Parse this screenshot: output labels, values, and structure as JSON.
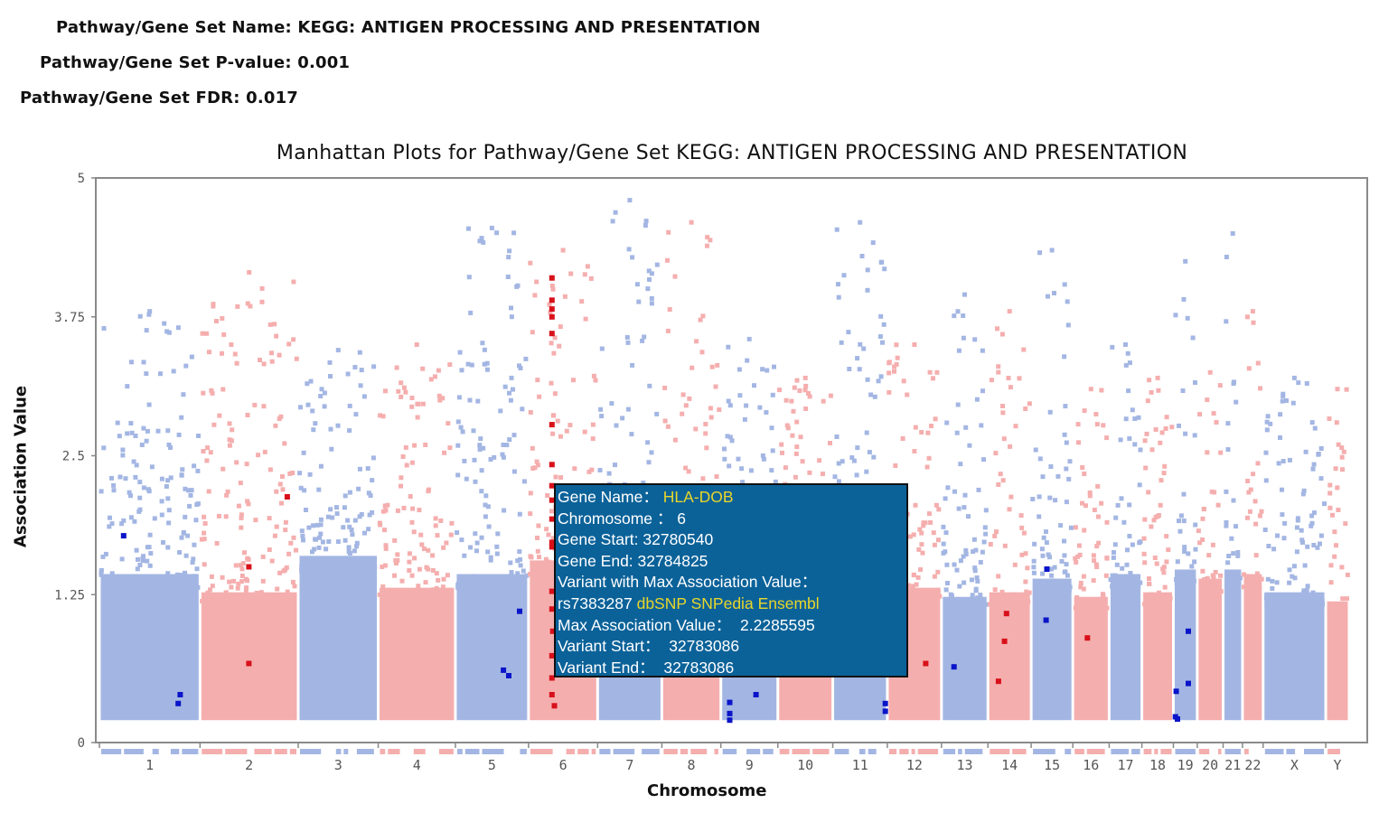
{
  "header": {
    "name_label": "Pathway/Gene Set Name:",
    "name_value": "KEGG: ANTIGEN PROCESSING AND PRESENTATION",
    "pvalue_label": "Pathway/Gene Set P-value:",
    "pvalue_value": "0.001",
    "fdr_label": "Pathway/Gene Set FDR:",
    "fdr_value": "0.017"
  },
  "chart_data": {
    "type": "scatter",
    "title": "Manhattan Plots for Pathway/Gene Set KEGG: ANTIGEN PROCESSING AND PRESENTATION",
    "xlabel": "Chromosome",
    "ylabel": "Association Value",
    "ylim": [
      0,
      5
    ],
    "yticks": [
      "0",
      "1.25",
      "2.5",
      "3.75",
      "5"
    ],
    "grid": false,
    "legend": "none",
    "colors": {
      "odd_chromosome": "#a3b6e3",
      "even_chromosome": "#f5aeae",
      "highlight_odd": "#0a14c8",
      "highlight_even": "#d8101a",
      "axis": "#888888",
      "tooltip_bg": "#0b6299",
      "tooltip_accent": "#e8d62a"
    },
    "chromosomes": [
      {
        "label": "1",
        "start": 0,
        "end": 249,
        "bulk_top": 1.75,
        "max": 3.8
      },
      {
        "label": "2",
        "start": 249,
        "end": 492,
        "bulk_top": 1.55,
        "max": 4.15
      },
      {
        "label": "3",
        "start": 492,
        "end": 690,
        "bulk_top": 1.95,
        "max": 3.45
      },
      {
        "label": "4",
        "start": 690,
        "end": 881,
        "bulk_top": 1.6,
        "max": 3.5
      },
      {
        "label": "5",
        "start": 881,
        "end": 1062,
        "bulk_top": 1.75,
        "max": 4.55
      },
      {
        "label": "6",
        "start": 1062,
        "end": 1233,
        "bulk_top": 1.9,
        "max": 4.35
      },
      {
        "label": "7",
        "start": 1233,
        "end": 1392,
        "bulk_top": 1.85,
        "max": 4.8
      },
      {
        "label": "8",
        "start": 1392,
        "end": 1538,
        "bulk_top": 1.7,
        "max": 4.6
      },
      {
        "label": "9",
        "start": 1538,
        "end": 1679,
        "bulk_top": 1.7,
        "max": 3.55
      },
      {
        "label": "10",
        "start": 1679,
        "end": 1815,
        "bulk_top": 1.75,
        "max": 3.2
      },
      {
        "label": "11",
        "start": 1815,
        "end": 1950,
        "bulk_top": 1.7,
        "max": 4.6
      },
      {
        "label": "12",
        "start": 1950,
        "end": 2084,
        "bulk_top": 1.6,
        "max": 3.5
      },
      {
        "label": "13",
        "start": 2084,
        "end": 2199,
        "bulk_top": 1.5,
        "max": 3.95
      },
      {
        "label": "14",
        "start": 2199,
        "end": 2306,
        "bulk_top": 1.55,
        "max": 3.8
      },
      {
        "label": "15",
        "start": 2306,
        "end": 2409,
        "bulk_top": 1.7,
        "max": 4.35
      },
      {
        "label": "16",
        "start": 2409,
        "end": 2499,
        "bulk_top": 1.5,
        "max": 3.1
      },
      {
        "label": "17",
        "start": 2499,
        "end": 2580,
        "bulk_top": 1.75,
        "max": 3.5
      },
      {
        "label": "18",
        "start": 2580,
        "end": 2658,
        "bulk_top": 1.55,
        "max": 3.2
      },
      {
        "label": "19",
        "start": 2658,
        "end": 2717,
        "bulk_top": 1.8,
        "max": 4.25
      },
      {
        "label": "20",
        "start": 2717,
        "end": 2781,
        "bulk_top": 1.7,
        "max": 3.25
      },
      {
        "label": "21",
        "start": 2781,
        "end": 2829,
        "bulk_top": 1.8,
        "max": 4.5
      },
      {
        "label": "22",
        "start": 2829,
        "end": 2880,
        "bulk_top": 1.75,
        "max": 3.8
      },
      {
        "label": "X",
        "start": 2880,
        "end": 3035,
        "bulk_top": 1.55,
        "max": 3.2
      },
      {
        "label": "Y",
        "start": 3035,
        "end": 3093,
        "bulk_top": 1.45,
        "max": 3.1
      }
    ],
    "highlighted_genes": [
      {
        "chr": "1",
        "pos": 60,
        "value": 1.78
      },
      {
        "chr": "1",
        "pos": 200,
        "value": 0.35
      },
      {
        "chr": "1",
        "pos": 195,
        "value": 0.27
      },
      {
        "chr": "2",
        "pos": 370,
        "value": 1.5
      },
      {
        "chr": "2",
        "pos": 370,
        "value": 0.63
      },
      {
        "chr": "2",
        "pos": 465,
        "value": 2.13
      },
      {
        "chr": "5",
        "pos": 1000,
        "value": 0.57
      },
      {
        "chr": "5",
        "pos": 1013,
        "value": 0.52
      },
      {
        "chr": "5",
        "pos": 1040,
        "value": 1.1
      },
      {
        "chr": "6",
        "pos": 1120,
        "value": 4.1
      },
      {
        "chr": "6",
        "pos": 1120,
        "value": 3.9
      },
      {
        "chr": "6",
        "pos": 1120,
        "value": 3.82
      },
      {
        "chr": "6",
        "pos": 1120,
        "value": 3.75
      },
      {
        "chr": "6",
        "pos": 1120,
        "value": 3.6
      },
      {
        "chr": "6",
        "pos": 1120,
        "value": 2.78
      },
      {
        "chr": "6",
        "pos": 1120,
        "value": 2.42
      },
      {
        "chr": "6",
        "pos": 1120,
        "value": 2.23
      },
      {
        "chr": "6",
        "pos": 1120,
        "value": 2.1
      },
      {
        "chr": "6",
        "pos": 1120,
        "value": 1.93
      },
      {
        "chr": "6",
        "pos": 1120,
        "value": 1.72
      },
      {
        "chr": "6",
        "pos": 1120,
        "value": 1.68
      },
      {
        "chr": "6",
        "pos": 1120,
        "value": 1.28
      },
      {
        "chr": "6",
        "pos": 1120,
        "value": 1.12
      },
      {
        "chr": "6",
        "pos": 1122,
        "value": 0.92
      },
      {
        "chr": "6",
        "pos": 1120,
        "value": 0.7
      },
      {
        "chr": "6",
        "pos": 1120,
        "value": 0.5
      },
      {
        "chr": "6",
        "pos": 1120,
        "value": 0.35
      },
      {
        "chr": "6",
        "pos": 1126,
        "value": 0.25
      },
      {
        "chr": "9",
        "pos": 1560,
        "value": 0.28
      },
      {
        "chr": "9",
        "pos": 1560,
        "value": 0.18
      },
      {
        "chr": "9",
        "pos": 1560,
        "value": 0.12
      },
      {
        "chr": "9",
        "pos": 1625,
        "value": 0.35
      },
      {
        "chr": "11",
        "pos": 1945,
        "value": 0.27
      },
      {
        "chr": "11",
        "pos": 1945,
        "value": 0.2
      },
      {
        "chr": "12",
        "pos": 2045,
        "value": 0.63
      },
      {
        "chr": "13",
        "pos": 2115,
        "value": 0.6
      },
      {
        "chr": "14",
        "pos": 2225,
        "value": 0.47
      },
      {
        "chr": "14",
        "pos": 2240,
        "value": 0.83
      },
      {
        "chr": "14",
        "pos": 2245,
        "value": 1.08
      },
      {
        "chr": "15",
        "pos": 2345,
        "value": 1.48
      },
      {
        "chr": "15",
        "pos": 2343,
        "value": 1.02
      },
      {
        "chr": "16",
        "pos": 2445,
        "value": 0.86
      },
      {
        "chr": "19",
        "pos": 2665,
        "value": 0.38
      },
      {
        "chr": "19",
        "pos": 2663,
        "value": 0.15
      },
      {
        "chr": "19",
        "pos": 2668,
        "value": 0.13
      },
      {
        "chr": "19",
        "pos": 2695,
        "value": 0.92
      },
      {
        "chr": "19",
        "pos": 2695,
        "value": 0.45
      }
    ]
  },
  "tooltip": {
    "gene_name_label": "Gene Name：",
    "gene_name": "HLA-DOB",
    "chromosome_label": "Chromosome ：",
    "chromosome": "6",
    "gene_start_label": "Gene Start:",
    "gene_start": "32780540",
    "gene_end_label": "Gene End:",
    "gene_end": "32784825",
    "variant_label": "Variant with Max Association Value：",
    "variant_id": "rs7383287",
    "links": [
      "dbSNP",
      "SNPedia",
      "Ensembl"
    ],
    "max_value_label": "Max Association Value：",
    "max_value": "2.2285595",
    "variant_start_label": "Variant Start：",
    "variant_start": "32783086",
    "variant_end_label": "Variant End：",
    "variant_end": "32783086"
  }
}
